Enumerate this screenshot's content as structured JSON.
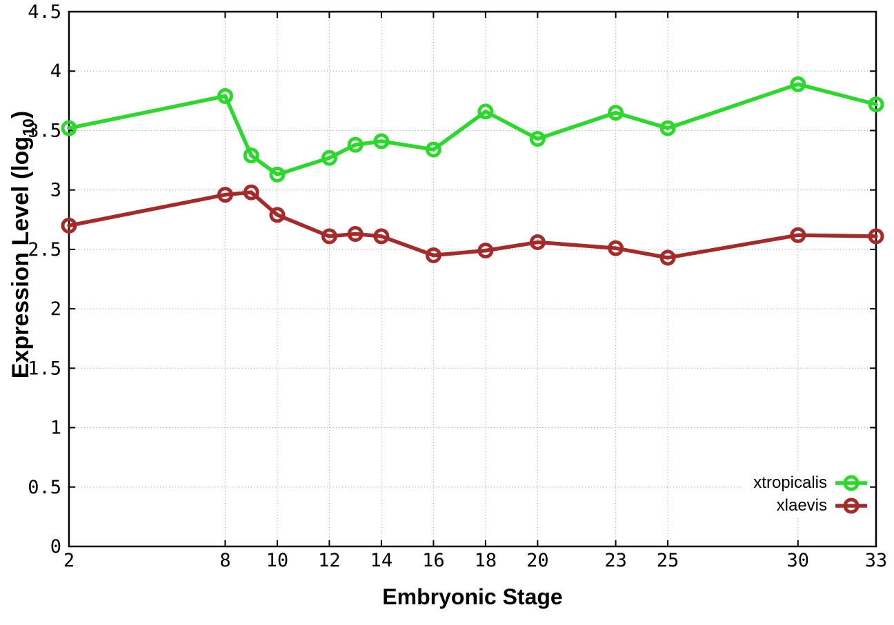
{
  "chart_data": {
    "type": "line",
    "xlabel": "Embryonic Stage",
    "ylabel": "Expression Level (log10)",
    "ylabel_main": "Expression Level (log",
    "ylabel_sub": "10",
    "ylabel_suffix": ")",
    "xlim": [
      2,
      33
    ],
    "ylim": [
      0,
      4.5
    ],
    "xticks": [
      2,
      8,
      10,
      12,
      14,
      16,
      18,
      20,
      23,
      25,
      30,
      33
    ],
    "xtick_labels": [
      "2",
      "8",
      "10",
      "12",
      "14",
      "16",
      "18",
      "20",
      "23",
      "25",
      "30",
      "33"
    ],
    "yticks": [
      0,
      0.5,
      1,
      1.5,
      2,
      2.5,
      3,
      3.5,
      4,
      4.5
    ],
    "ytick_labels": [
      "0",
      "0.5",
      "1",
      "1.5",
      "2",
      "2.5",
      "3",
      "3.5",
      "4",
      "4.5"
    ],
    "grid": true,
    "legend_position": "bottom-right",
    "x": [
      2,
      8,
      9,
      10,
      12,
      13,
      14,
      16,
      18,
      20,
      23,
      25,
      30,
      33
    ],
    "series": [
      {
        "name": "xtropicalis",
        "color": "#2bd82b",
        "values": [
          3.52,
          3.79,
          3.29,
          3.13,
          3.27,
          3.38,
          3.41,
          3.34,
          3.66,
          3.43,
          3.65,
          3.52,
          3.89,
          3.72
        ]
      },
      {
        "name": "xlaevis",
        "color": "#a52a2a",
        "values": [
          2.7,
          2.96,
          2.98,
          2.79,
          2.61,
          2.63,
          2.61,
          2.45,
          2.49,
          2.56,
          2.51,
          2.43,
          2.62,
          2.61
        ]
      }
    ],
    "colors": {
      "border": "#000000",
      "grid": "#a8a8a8",
      "background": "#ffffff"
    }
  }
}
